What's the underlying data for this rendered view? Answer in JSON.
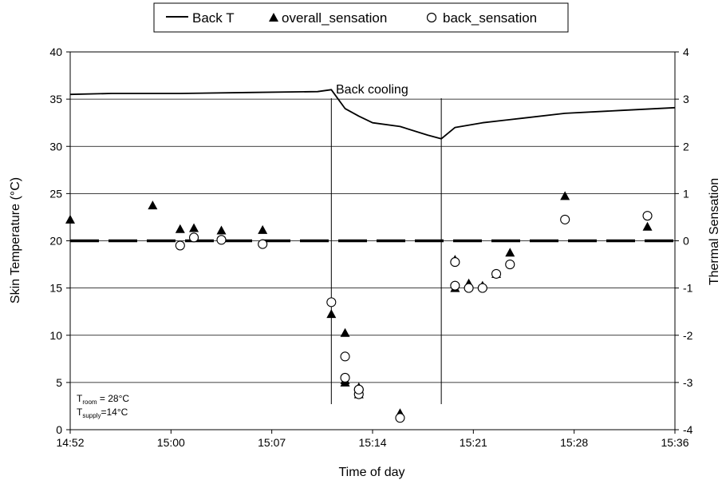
{
  "chart_data": {
    "type": "line",
    "xlabel": "Time of day",
    "ylabel_left": "Skin Temperature (°C)",
    "ylabel_right": "Thermal Sensation",
    "x_range": [
      "14:52",
      "15:36"
    ],
    "x_ticks": [
      "14:52",
      "15:00",
      "15:07",
      "15:14",
      "15:21",
      "15:28",
      "15:36"
    ],
    "ylim_left": [
      0,
      40
    ],
    "yticks_left": [
      "0",
      "5",
      "10",
      "15",
      "20",
      "25",
      "30",
      "35",
      "40"
    ],
    "ylim_right": [
      -4,
      4
    ],
    "yticks_right": [
      "-4",
      "-3",
      "-2",
      "-1",
      "0",
      "1",
      "2",
      "3",
      "4"
    ],
    "grid": "horizontal",
    "legend": {
      "placement": "top-center",
      "entries": [
        "Back T",
        "overall_sensation",
        "back_sensation"
      ]
    },
    "series": [
      {
        "name": "Back T",
        "axis": "left",
        "style": "line",
        "points": [
          [
            "14:52",
            35.5
          ],
          [
            "14:55",
            35.6
          ],
          [
            "15:00",
            35.6
          ],
          [
            "15:05",
            35.7
          ],
          [
            "15:10",
            35.8
          ],
          [
            "15:11",
            36.0
          ],
          [
            "15:12",
            34.0
          ],
          [
            "15:13",
            33.2
          ],
          [
            "15:14",
            32.5
          ],
          [
            "15:16",
            32.1
          ],
          [
            "15:18",
            31.2
          ],
          [
            "15:19",
            30.8
          ],
          [
            "15:20",
            32.0
          ],
          [
            "15:22",
            32.5
          ],
          [
            "15:25",
            33.0
          ],
          [
            "15:28",
            33.5
          ],
          [
            "15:32",
            33.8
          ],
          [
            "15:36",
            34.1
          ]
        ]
      },
      {
        "name": "overall_sensation",
        "axis": "right",
        "style": "triangle",
        "points": [
          [
            "14:52",
            0.45
          ],
          [
            "14:58",
            0.75
          ],
          [
            "15:00",
            0.25
          ],
          [
            "15:01",
            0.27
          ],
          [
            "15:03",
            0.22
          ],
          [
            "15:06",
            0.23
          ],
          [
            "15:11",
            -1.55
          ],
          [
            "15:12",
            -1.95
          ],
          [
            "15:12",
            -2.95
          ],
          [
            "15:12",
            -3.0
          ],
          [
            "15:13",
            -3.25
          ],
          [
            "15:13",
            -3.1
          ],
          [
            "15:16",
            -3.65
          ],
          [
            "15:20",
            -1.0
          ],
          [
            "15:20",
            -0.4
          ],
          [
            "15:21",
            -0.9
          ],
          [
            "15:22",
            -0.95
          ],
          [
            "15:23",
            -0.7
          ],
          [
            "15:24",
            -0.25
          ],
          [
            "15:28",
            0.95
          ],
          [
            "15:34",
            0.3
          ]
        ]
      },
      {
        "name": "back_sensation",
        "axis": "right",
        "style": "circle",
        "points": [
          [
            "15:00",
            -0.1
          ],
          [
            "15:01",
            0.07
          ],
          [
            "15:03",
            0.02
          ],
          [
            "15:06",
            -0.07
          ],
          [
            "15:11",
            -1.3
          ],
          [
            "15:12",
            -2.45
          ],
          [
            "15:12",
            -2.9
          ],
          [
            "15:13",
            -3.15
          ],
          [
            "15:13",
            -3.25
          ],
          [
            "15:13",
            -3.15
          ],
          [
            "15:16",
            -3.75
          ],
          [
            "15:20",
            -0.45
          ],
          [
            "15:20",
            -0.95
          ],
          [
            "15:21",
            -1.0
          ],
          [
            "15:22",
            -1.0
          ],
          [
            "15:23",
            -0.7
          ],
          [
            "15:24",
            -0.5
          ],
          [
            "15:28",
            0.45
          ],
          [
            "15:34",
            0.53
          ]
        ]
      }
    ],
    "reference_lines": [
      {
        "axis": "right",
        "value": 0,
        "style": "dashed"
      },
      {
        "orientation": "vertical",
        "time": "15:11"
      },
      {
        "orientation": "vertical",
        "time": "15:19"
      }
    ],
    "annotations": {
      "back_cooling": "Back cooling",
      "t_room_main": "T",
      "t_room_sub": "room",
      "t_room_value": " = 28°C",
      "t_supply_main": "T",
      "t_supply_sub": "supply",
      "t_supply_value": "=14°C"
    }
  }
}
